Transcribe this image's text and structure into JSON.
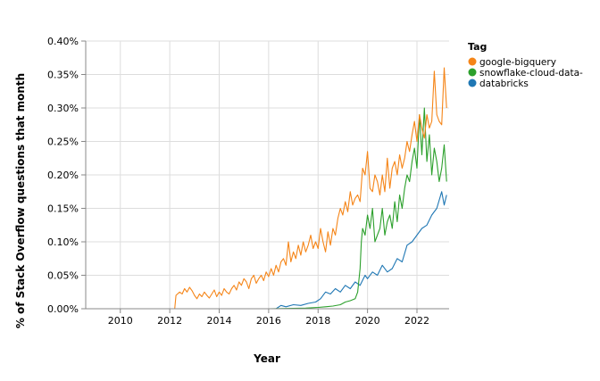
{
  "chart_data": {
    "type": "line",
    "xlabel": "Year",
    "ylabel": "% of Stack Overflow questions that month",
    "x_ticks": [
      "2010",
      "2012",
      "2014",
      "2016",
      "2018",
      "2020",
      "2022"
    ],
    "y_ticks": [
      "0.00%",
      "0.05%",
      "0.10%",
      "0.15%",
      "0.20%",
      "0.25%",
      "0.30%",
      "0.35%",
      "0.40%"
    ],
    "xlim": [
      2008.6,
      2023.3
    ],
    "ylim": [
      0,
      0.4
    ],
    "grid": true,
    "legend": {
      "title": "Tag",
      "position": "right"
    },
    "series": [
      {
        "name": "google-bigquery",
        "color": "#f58518",
        "points": [
          [
            2008.6,
            0
          ],
          [
            2010.0,
            0
          ],
          [
            2012.2,
            0
          ],
          [
            2012.25,
            0.02
          ],
          [
            2012.4,
            0.025
          ],
          [
            2012.5,
            0.022
          ],
          [
            2012.6,
            0.03
          ],
          [
            2012.7,
            0.025
          ],
          [
            2012.8,
            0.032
          ],
          [
            2012.9,
            0.027
          ],
          [
            2013.0,
            0.02
          ],
          [
            2013.1,
            0.015
          ],
          [
            2013.2,
            0.022
          ],
          [
            2013.3,
            0.018
          ],
          [
            2013.4,
            0.025
          ],
          [
            2013.5,
            0.02
          ],
          [
            2013.6,
            0.016
          ],
          [
            2013.7,
            0.022
          ],
          [
            2013.8,
            0.028
          ],
          [
            2013.9,
            0.018
          ],
          [
            2014.0,
            0.025
          ],
          [
            2014.1,
            0.02
          ],
          [
            2014.2,
            0.03
          ],
          [
            2014.3,
            0.025
          ],
          [
            2014.4,
            0.022
          ],
          [
            2014.5,
            0.03
          ],
          [
            2014.6,
            0.035
          ],
          [
            2014.7,
            0.028
          ],
          [
            2014.8,
            0.04
          ],
          [
            2014.9,
            0.035
          ],
          [
            2015.0,
            0.045
          ],
          [
            2015.1,
            0.04
          ],
          [
            2015.2,
            0.03
          ],
          [
            2015.3,
            0.045
          ],
          [
            2015.4,
            0.05
          ],
          [
            2015.5,
            0.038
          ],
          [
            2015.6,
            0.045
          ],
          [
            2015.7,
            0.05
          ],
          [
            2015.8,
            0.042
          ],
          [
            2015.9,
            0.055
          ],
          [
            2016.0,
            0.048
          ],
          [
            2016.1,
            0.06
          ],
          [
            2016.2,
            0.05
          ],
          [
            2016.3,
            0.065
          ],
          [
            2016.4,
            0.055
          ],
          [
            2016.5,
            0.07
          ],
          [
            2016.6,
            0.075
          ],
          [
            2016.7,
            0.065
          ],
          [
            2016.8,
            0.1
          ],
          [
            2016.9,
            0.07
          ],
          [
            2017.0,
            0.085
          ],
          [
            2017.1,
            0.075
          ],
          [
            2017.2,
            0.095
          ],
          [
            2017.3,
            0.08
          ],
          [
            2017.4,
            0.1
          ],
          [
            2017.5,
            0.085
          ],
          [
            2017.6,
            0.095
          ],
          [
            2017.7,
            0.11
          ],
          [
            2017.8,
            0.09
          ],
          [
            2017.9,
            0.1
          ],
          [
            2018.0,
            0.09
          ],
          [
            2018.1,
            0.12
          ],
          [
            2018.2,
            0.1
          ],
          [
            2018.3,
            0.085
          ],
          [
            2018.4,
            0.115
          ],
          [
            2018.5,
            0.095
          ],
          [
            2018.6,
            0.12
          ],
          [
            2018.7,
            0.11
          ],
          [
            2018.8,
            0.135
          ],
          [
            2018.9,
            0.15
          ],
          [
            2019.0,
            0.14
          ],
          [
            2019.1,
            0.16
          ],
          [
            2019.2,
            0.145
          ],
          [
            2019.3,
            0.175
          ],
          [
            2019.4,
            0.155
          ],
          [
            2019.5,
            0.165
          ],
          [
            2019.6,
            0.17
          ],
          [
            2019.7,
            0.16
          ],
          [
            2019.8,
            0.21
          ],
          [
            2019.9,
            0.2
          ],
          [
            2020.0,
            0.235
          ],
          [
            2020.1,
            0.18
          ],
          [
            2020.2,
            0.175
          ],
          [
            2020.3,
            0.2
          ],
          [
            2020.4,
            0.19
          ],
          [
            2020.5,
            0.17
          ],
          [
            2020.6,
            0.2
          ],
          [
            2020.7,
            0.175
          ],
          [
            2020.8,
            0.225
          ],
          [
            2020.9,
            0.18
          ],
          [
            2021.0,
            0.21
          ],
          [
            2021.1,
            0.22
          ],
          [
            2021.2,
            0.2
          ],
          [
            2021.3,
            0.23
          ],
          [
            2021.4,
            0.21
          ],
          [
            2021.5,
            0.225
          ],
          [
            2021.6,
            0.25
          ],
          [
            2021.7,
            0.235
          ],
          [
            2021.8,
            0.26
          ],
          [
            2021.9,
            0.28
          ],
          [
            2022.0,
            0.25
          ],
          [
            2022.1,
            0.29
          ],
          [
            2022.2,
            0.27
          ],
          [
            2022.3,
            0.255
          ],
          [
            2022.4,
            0.29
          ],
          [
            2022.5,
            0.27
          ],
          [
            2022.6,
            0.28
          ],
          [
            2022.7,
            0.355
          ],
          [
            2022.8,
            0.29
          ],
          [
            2022.9,
            0.28
          ],
          [
            2023.0,
            0.275
          ],
          [
            2023.1,
            0.36
          ],
          [
            2023.2,
            0.3
          ]
        ]
      },
      {
        "name": "snowflake-cloud-data-",
        "color": "#2ca02c",
        "points": [
          [
            2008.6,
            0
          ],
          [
            2016.0,
            0
          ],
          [
            2017.5,
            0.001
          ],
          [
            2018.0,
            0.002
          ],
          [
            2018.3,
            0.003
          ],
          [
            2018.6,
            0.004
          ],
          [
            2018.9,
            0.006
          ],
          [
            2019.1,
            0.01
          ],
          [
            2019.3,
            0.012
          ],
          [
            2019.5,
            0.015
          ],
          [
            2019.6,
            0.025
          ],
          [
            2019.7,
            0.06
          ],
          [
            2019.75,
            0.1
          ],
          [
            2019.8,
            0.12
          ],
          [
            2019.9,
            0.11
          ],
          [
            2020.0,
            0.14
          ],
          [
            2020.1,
            0.12
          ],
          [
            2020.2,
            0.15
          ],
          [
            2020.3,
            0.1
          ],
          [
            2020.4,
            0.11
          ],
          [
            2020.5,
            0.12
          ],
          [
            2020.6,
            0.15
          ],
          [
            2020.7,
            0.11
          ],
          [
            2020.8,
            0.13
          ],
          [
            2020.9,
            0.14
          ],
          [
            2021.0,
            0.12
          ],
          [
            2021.1,
            0.16
          ],
          [
            2021.2,
            0.13
          ],
          [
            2021.3,
            0.17
          ],
          [
            2021.4,
            0.15
          ],
          [
            2021.5,
            0.18
          ],
          [
            2021.6,
            0.2
          ],
          [
            2021.7,
            0.19
          ],
          [
            2021.8,
            0.22
          ],
          [
            2021.9,
            0.24
          ],
          [
            2022.0,
            0.21
          ],
          [
            2022.1,
            0.29
          ],
          [
            2022.2,
            0.23
          ],
          [
            2022.3,
            0.3
          ],
          [
            2022.4,
            0.22
          ],
          [
            2022.5,
            0.26
          ],
          [
            2022.6,
            0.2
          ],
          [
            2022.7,
            0.24
          ],
          [
            2022.8,
            0.22
          ],
          [
            2022.9,
            0.19
          ],
          [
            2023.0,
            0.21
          ],
          [
            2023.1,
            0.245
          ],
          [
            2023.2,
            0.19
          ]
        ]
      },
      {
        "name": "databricks",
        "color": "#1f77b4",
        "points": [
          [
            2008.6,
            0
          ],
          [
            2016.3,
            0
          ],
          [
            2016.5,
            0.005
          ],
          [
            2016.7,
            0.003
          ],
          [
            2017.0,
            0.006
          ],
          [
            2017.3,
            0.005
          ],
          [
            2017.6,
            0.008
          ],
          [
            2017.9,
            0.01
          ],
          [
            2018.1,
            0.015
          ],
          [
            2018.3,
            0.025
          ],
          [
            2018.5,
            0.022
          ],
          [
            2018.7,
            0.03
          ],
          [
            2018.9,
            0.025
          ],
          [
            2019.1,
            0.035
          ],
          [
            2019.3,
            0.03
          ],
          [
            2019.5,
            0.04
          ],
          [
            2019.7,
            0.035
          ],
          [
            2019.9,
            0.05
          ],
          [
            2020.0,
            0.045
          ],
          [
            2020.2,
            0.055
          ],
          [
            2020.4,
            0.05
          ],
          [
            2020.6,
            0.065
          ],
          [
            2020.8,
            0.055
          ],
          [
            2021.0,
            0.06
          ],
          [
            2021.2,
            0.075
          ],
          [
            2021.4,
            0.07
          ],
          [
            2021.6,
            0.095
          ],
          [
            2021.8,
            0.1
          ],
          [
            2022.0,
            0.11
          ],
          [
            2022.2,
            0.12
          ],
          [
            2022.4,
            0.125
          ],
          [
            2022.6,
            0.14
          ],
          [
            2022.8,
            0.15
          ],
          [
            2023.0,
            0.175
          ],
          [
            2023.1,
            0.155
          ],
          [
            2023.2,
            0.17
          ]
        ]
      }
    ]
  }
}
